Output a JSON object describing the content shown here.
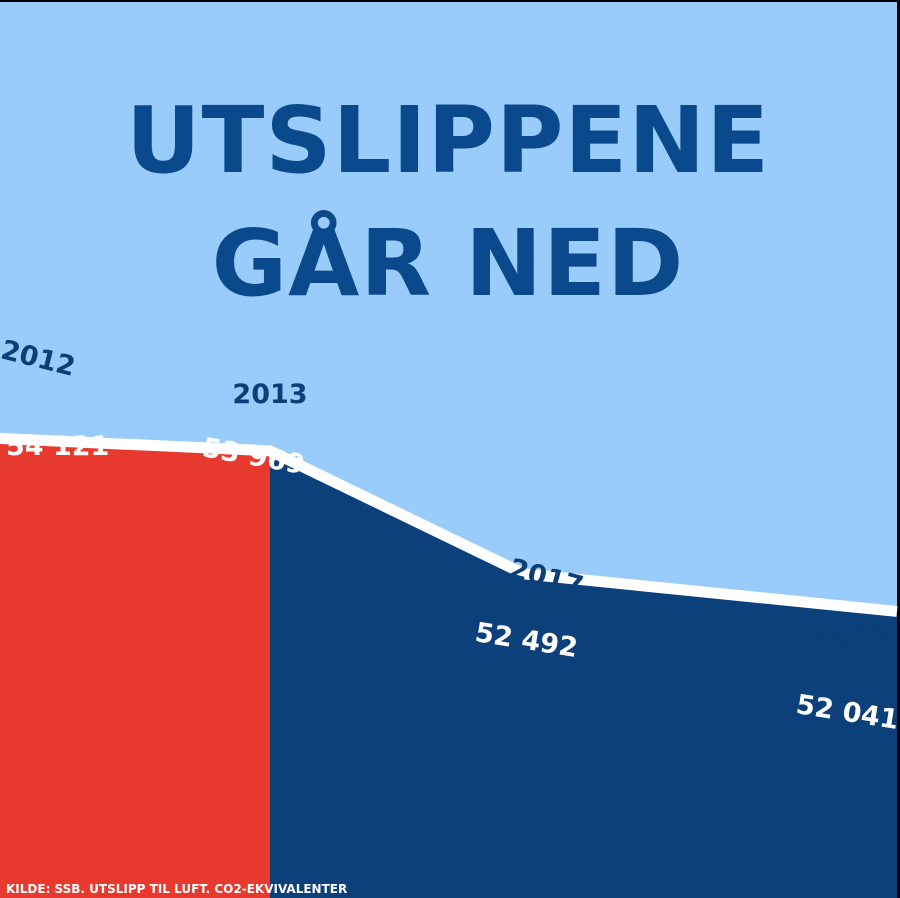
{
  "chart_data": {
    "type": "area",
    "title_lines": [
      "UTSLIPPENE",
      "GÅR NED"
    ],
    "x": [
      "2012",
      "2013",
      "2017",
      "2018"
    ],
    "series": [
      {
        "values": [
          54121,
          53969,
          52492,
          52041
        ]
      }
    ],
    "value_labels": [
      "54 121",
      "53 969",
      "52 492",
      "52 041"
    ],
    "highlight_range": [
      "2012",
      "2013"
    ],
    "ylim": [
      48600,
      55000
    ],
    "source": "KILDE: SSB. UTSLIPP TIL LUFT. CO2-EKVIVALENTER",
    "colors": {
      "background": "#99ccfa",
      "title": "#0a4a8c",
      "year_labels": "#0a3f7a",
      "highlight_area": "#e8392f",
      "area": "#0b407b",
      "line": "#ffffff",
      "value_labels": "#ffffff"
    }
  }
}
